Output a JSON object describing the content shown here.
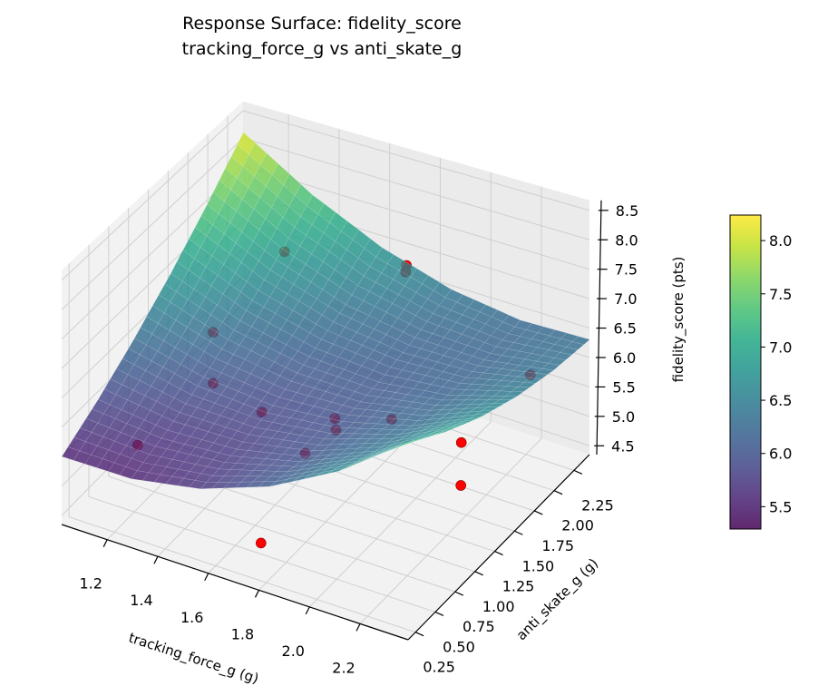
{
  "chart_data": {
    "type": "surface",
    "title": [
      "Response Surface: fidelity_score",
      "tracking_force_g vs anti_skate_g"
    ],
    "xlabel": "tracking_force_g (g)",
    "ylabel": "anti_skate_g (g)",
    "zlabel": "fidelity_score (pts)",
    "xlim": [
      1.02,
      2.39
    ],
    "ylim": [
      0.157,
      2.445
    ],
    "zlim": [
      4.35,
      8.67
    ],
    "xticks": [
      "1.2",
      "1.4",
      "1.6",
      "1.8",
      "2.0",
      "2.2"
    ],
    "yticks": [
      "0.25",
      "0.50",
      "0.75",
      "1.00",
      "1.25",
      "1.50",
      "1.75",
      "2.00",
      "2.25"
    ],
    "zticks": [
      "4.5",
      "5.0",
      "5.5",
      "6.0",
      "6.5",
      "7.0",
      "7.5",
      "8.0",
      "8.5"
    ],
    "grid": true,
    "colormap": "viridis",
    "surface_alpha": 0.8,
    "surface": {
      "x": [
        1.02,
        1.29,
        1.57,
        1.84,
        2.12,
        2.39
      ],
      "y": [
        0.16,
        0.61,
        1.07,
        1.53,
        1.99,
        2.45
      ],
      "z": [
        [
          5.5,
          5.5,
          5.7,
          6.1,
          6.7,
          7.5
        ],
        [
          5.86,
          5.71,
          5.76,
          6.0,
          6.45,
          7.1
        ],
        [
          6.3,
          6.0,
          5.89,
          5.99,
          6.28,
          6.78
        ],
        [
          6.82,
          6.36,
          6.11,
          6.05,
          6.2,
          6.54
        ],
        [
          7.42,
          6.81,
          6.4,
          6.2,
          6.19,
          6.38
        ],
        [
          8.1,
          7.34,
          6.78,
          6.42,
          6.26,
          6.3
        ]
      ]
    },
    "points": {
      "color": "#ff0000",
      "x": [
        1.38,
        1.79,
        1.79,
        1.22,
        1.27,
        1.16,
        1.45,
        1.67,
        1.69,
        1.86,
        2.23,
        2.12,
        2.14,
        1.66,
        1.65
      ],
      "y": [
        1.82,
        2.05,
        2.04,
        1.43,
        1.27,
        0.67,
        1.31,
        1.53,
        1.48,
        1.64,
        2.21,
        1.69,
        1.62,
        0.63,
        1.22
      ],
      "z": [
        7.3,
        7.3,
        7.2,
        6.2,
        5.6,
        5.2,
        5.3,
        5.2,
        5.1,
        5.3,
        5.8,
        5.2,
        4.6,
        4.3,
        5.0
      ]
    },
    "colorbar": {
      "range": [
        5.29,
        8.24
      ],
      "ticks": [
        "5.5",
        "6.0",
        "6.5",
        "7.0",
        "7.5",
        "8.0"
      ]
    }
  }
}
